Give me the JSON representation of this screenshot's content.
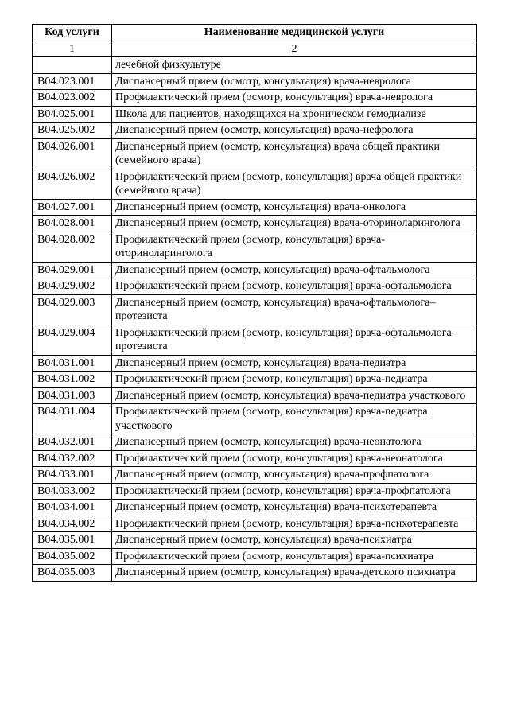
{
  "table": {
    "headers": {
      "code": "Код услуги",
      "name": "Наименование медицинской услуги"
    },
    "subheaders": {
      "code": "1",
      "name": "2"
    },
    "rows": [
      {
        "code": "",
        "name": "лечебной физкультуре"
      },
      {
        "code": "B04.023.001",
        "name": "Диспансерный прием (осмотр, консультация) врача-невролога"
      },
      {
        "code": "B04.023.002",
        "name": "Профилактический прием (осмотр, консультация) врача-невролога"
      },
      {
        "code": "B04.025.001",
        "name": "Школа для пациентов, находящихся на хроническом гемодиализе"
      },
      {
        "code": "B04.025.002",
        "name": "Диспансерный прием (осмотр, консультация) врача-нефролога"
      },
      {
        "code": "B04.026.001",
        "name": "Диспансерный прием (осмотр, консультация) врача общей практики (семейного врача)"
      },
      {
        "code": "B04.026.002",
        "name": "Профилактический прием (осмотр, консультация) врача общей практики (семейного врача)"
      },
      {
        "code": "B04.027.001",
        "name": "Диспансерный прием (осмотр, консультация) врача-онколога"
      },
      {
        "code": "B04.028.001",
        "name": "Диспансерный прием (осмотр, консультация) врача-оториноларинголога"
      },
      {
        "code": "B04.028.002",
        "name": "Профилактический прием (осмотр, консультация) врача-оториноларинголога"
      },
      {
        "code": "B04.029.001",
        "name": "Диспансерный прием (осмотр, консультация) врача-офтальмолога"
      },
      {
        "code": "B04.029.002",
        "name": "Профилактический прием (осмотр, консультация) врача-офтальмолога"
      },
      {
        "code": "B04.029.003",
        "name": "Диспансерный прием (осмотр, консультация) врача-офтальмолога–протезиста"
      },
      {
        "code": "B04.029.004",
        "name": "Профилактический прием (осмотр, консультация) врача-офтальмолога–протезиста"
      },
      {
        "code": "B04.031.001",
        "name": "Диспансерный прием (осмотр, консультация) врача-педиатра"
      },
      {
        "code": "B04.031.002",
        "name": "Профилактический прием (осмотр, консультация) врача-педиатра"
      },
      {
        "code": "B04.031.003",
        "name": "Диспансерный прием (осмотр, консультация) врача-педиатра участкового"
      },
      {
        "code": "B04.031.004",
        "name": "Профилактический прием (осмотр, консультация) врача-педиатра участкового"
      },
      {
        "code": "B04.032.001",
        "name": "Диспансерный прием (осмотр, консультация) врача-неонатолога"
      },
      {
        "code": "B04.032.002",
        "name": "Профилактический прием (осмотр, консультация) врача-неонатолога"
      },
      {
        "code": "B04.033.001",
        "name": "Диспансерный прием (осмотр, консультация) врача-профпатолога"
      },
      {
        "code": "B04.033.002",
        "name": "Профилактический прием (осмотр, консультация) врача-профпатолога"
      },
      {
        "code": "B04.034.001",
        "name": "Диспансерный прием (осмотр, консультация) врача-психотерапевта"
      },
      {
        "code": "B04.034.002",
        "name": "Профилактический прием (осмотр, консультация) врача-психотерапевта"
      },
      {
        "code": "B04.035.001",
        "name": "Диспансерный прием (осмотр, консультация) врача-психиатра"
      },
      {
        "code": "B04.035.002",
        "name": "Профилактический прием (осмотр, консультация) врача-психиатра"
      },
      {
        "code": "B04.035.003",
        "name": "Диспансерный прием (осмотр, консультация) врача-детского психиатра"
      }
    ]
  }
}
